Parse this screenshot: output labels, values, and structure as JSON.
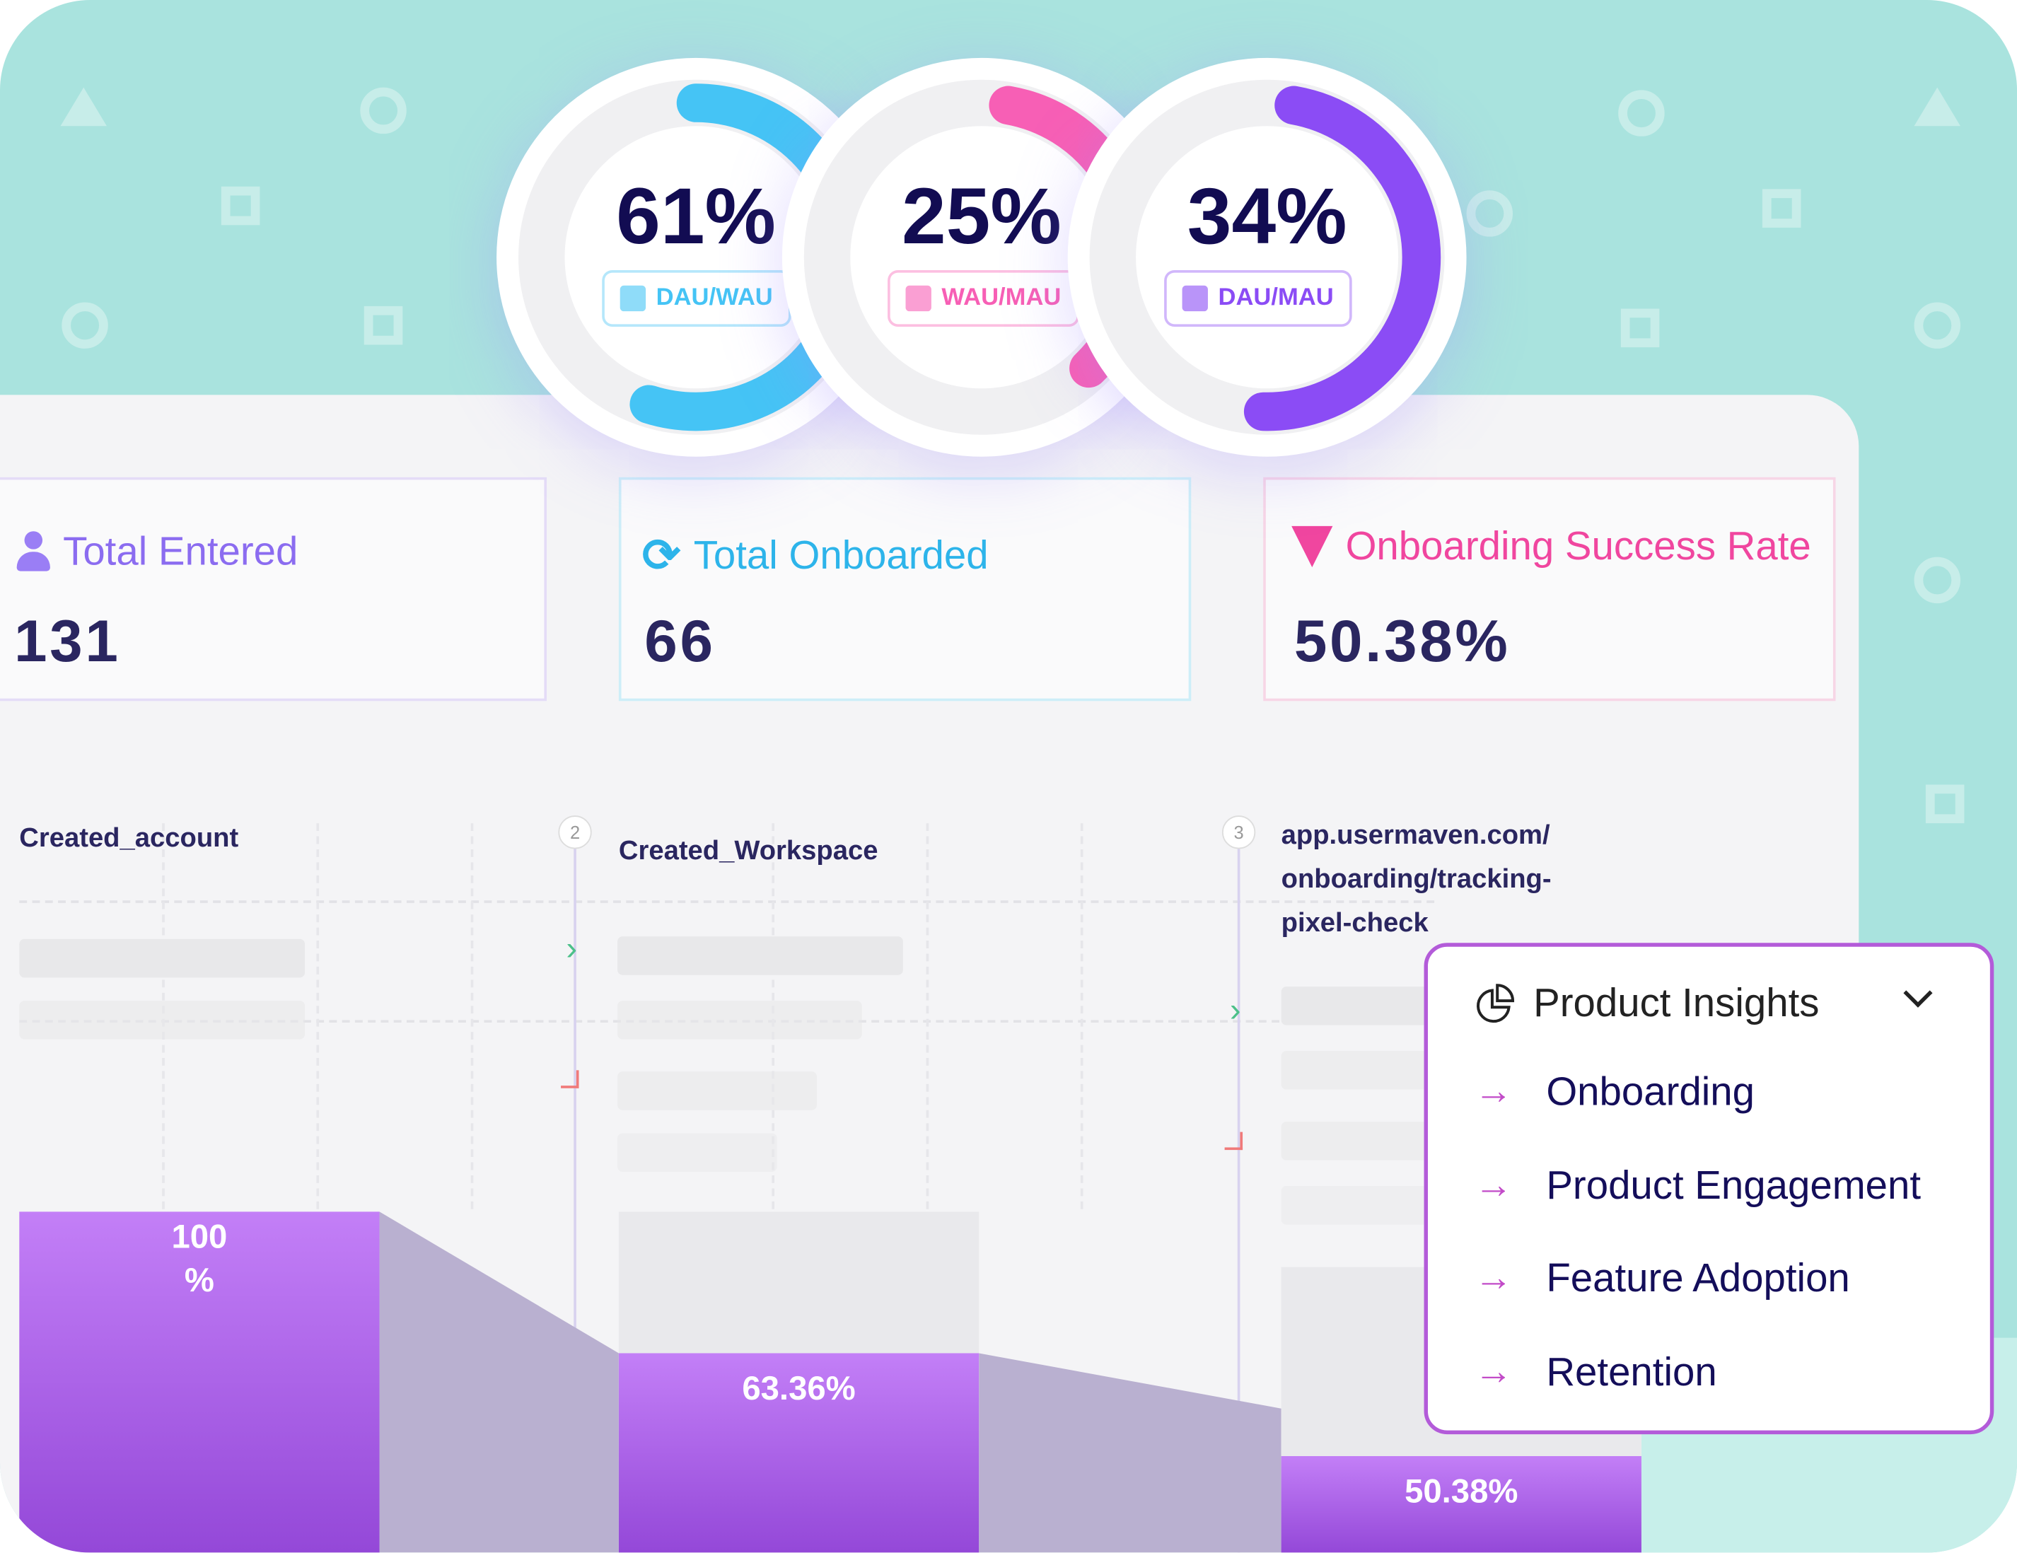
{
  "gauges": [
    {
      "value": "61%",
      "fraction": 0.61,
      "label": "DAU/WAU",
      "color": "#45c4f5"
    },
    {
      "value": "25%",
      "fraction": 0.25,
      "label": "WAU/MAU",
      "color": "#f75fb5"
    },
    {
      "value": "34%",
      "fraction": 0.34,
      "label": "DAU/MAU",
      "color": "#8b4cf5"
    }
  ],
  "cards": [
    {
      "title": "Total Entered",
      "value": "131",
      "icon": "user-icon",
      "color": "#8b6cf0"
    },
    {
      "title": "Total Onboarded",
      "value": "66",
      "icon": "refresh-icon",
      "color": "#2db4ea"
    },
    {
      "title": "Onboarding Success Rate",
      "value": "50.38%",
      "icon": "funnel-icon",
      "color": "#f0469f"
    }
  ],
  "funnel": {
    "steps": [
      {
        "number": "",
        "name": "Created_account",
        "percent": "100\n%",
        "rate": 1.0
      },
      {
        "number": "2",
        "name": "Created_Workspace",
        "percent": "63.36%",
        "rate": 0.6336
      },
      {
        "number": "3",
        "name": "app.usermaven.com/ onboarding/tracking- pixel-check",
        "percent": "50.38%",
        "rate": 0.5038
      }
    ]
  },
  "menu": {
    "title": "Product Insights",
    "icon": "pie-chart-icon",
    "items": [
      "Onboarding",
      "Product Engagement",
      "Feature Adoption",
      "Retention"
    ]
  }
}
